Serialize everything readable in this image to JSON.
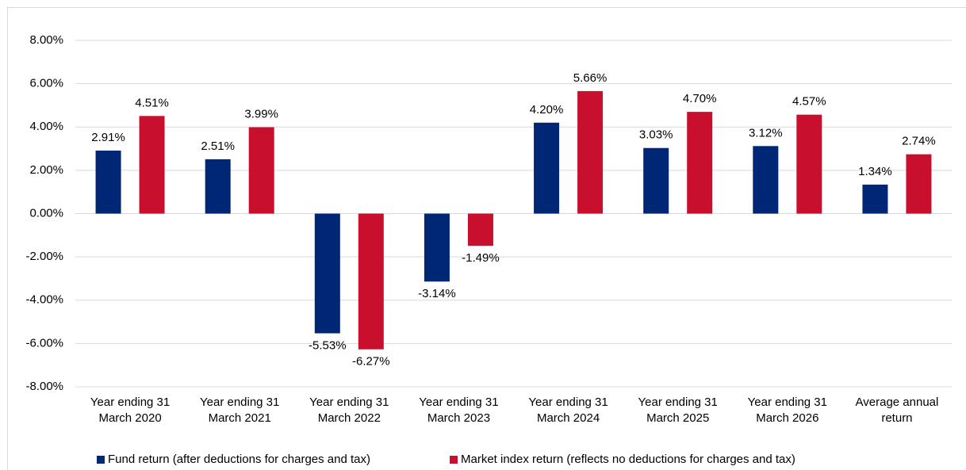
{
  "chart_data": {
    "type": "bar",
    "categories": [
      "Year ending 31 March 2020",
      "Year ending 31 March 2021",
      "Year ending 31 March 2022",
      "Year ending 31 March 2023",
      "Year ending 31 March 2024",
      "Year ending 31 March 2025",
      "Year ending 31 March 2026",
      "Average annual return"
    ],
    "series": [
      {
        "name": "Fund return (after deductions for charges and tax)",
        "color": "#002776",
        "values": [
          2.91,
          2.51,
          -5.53,
          -3.14,
          4.2,
          3.03,
          3.12,
          1.34
        ],
        "value_labels": [
          "2.91%",
          "2.51%",
          "-5.53%",
          "-3.14%",
          "4.20%",
          "3.03%",
          "3.12%",
          "1.34%"
        ]
      },
      {
        "name": "Market index return (reflects no deductions for charges and tax)",
        "color": "#c8102e",
        "values": [
          4.51,
          3.99,
          -6.27,
          -1.49,
          5.66,
          4.7,
          4.57,
          2.74
        ],
        "value_labels": [
          "4.51%",
          "3.99%",
          "-6.27%",
          "-1.49%",
          "5.66%",
          "4.70%",
          "4.57%",
          "2.74%"
        ]
      }
    ],
    "ylim": [
      -8,
      8
    ],
    "yticks": [
      {
        "value": -8,
        "label": "-8.00%"
      },
      {
        "value": -6,
        "label": "-6.00%"
      },
      {
        "value": -4,
        "label": "-4.00%"
      },
      {
        "value": -2,
        "label": "-2.00%"
      },
      {
        "value": 0,
        "label": "0.00%"
      },
      {
        "value": 2,
        "label": "2.00%"
      },
      {
        "value": 4,
        "label": "4.00%"
      },
      {
        "value": 6,
        "label": "6.00%"
      },
      {
        "value": 8,
        "label": "8.00%"
      }
    ],
    "grid": true,
    "legend": "bottom"
  }
}
